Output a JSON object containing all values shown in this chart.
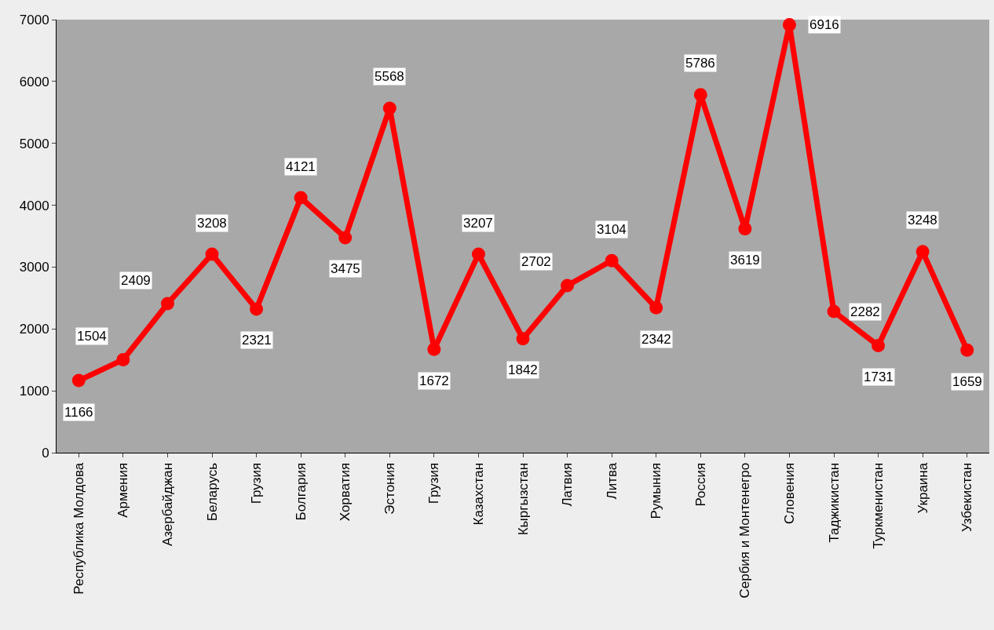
{
  "chart_data": {
    "type": "line",
    "categories": [
      "Республика Молдова",
      "Армения",
      "Азербайджан",
      "Беларусь",
      "Грузия",
      "Болгария",
      "Хорватия",
      "Эстония",
      "Грузия",
      "Казахстан",
      "Кыргызстан",
      "Латвия",
      "Литва",
      "Румыния",
      "Россия",
      "Сербия и Монтенегро",
      "Словения",
      "Таджикистан",
      "Туркменистан",
      "Украина",
      "Узбекистан"
    ],
    "series": [
      {
        "color": "#ff0000",
        "values": [
          1166,
          1504,
          2409,
          3208,
          2321,
          4121,
          3475,
          5568,
          1672,
          3207,
          1842,
          2702,
          3104,
          2342,
          5786,
          3619,
          6916,
          2282,
          1731,
          3248,
          1659
        ]
      }
    ],
    "ylim": [
      0,
      7000
    ],
    "yticks": [
      0,
      1000,
      2000,
      3000,
      4000,
      5000,
      6000,
      7000
    ],
    "grid": false,
    "marker": "circle",
    "line_style": "solid",
    "data_labels": true
  }
}
